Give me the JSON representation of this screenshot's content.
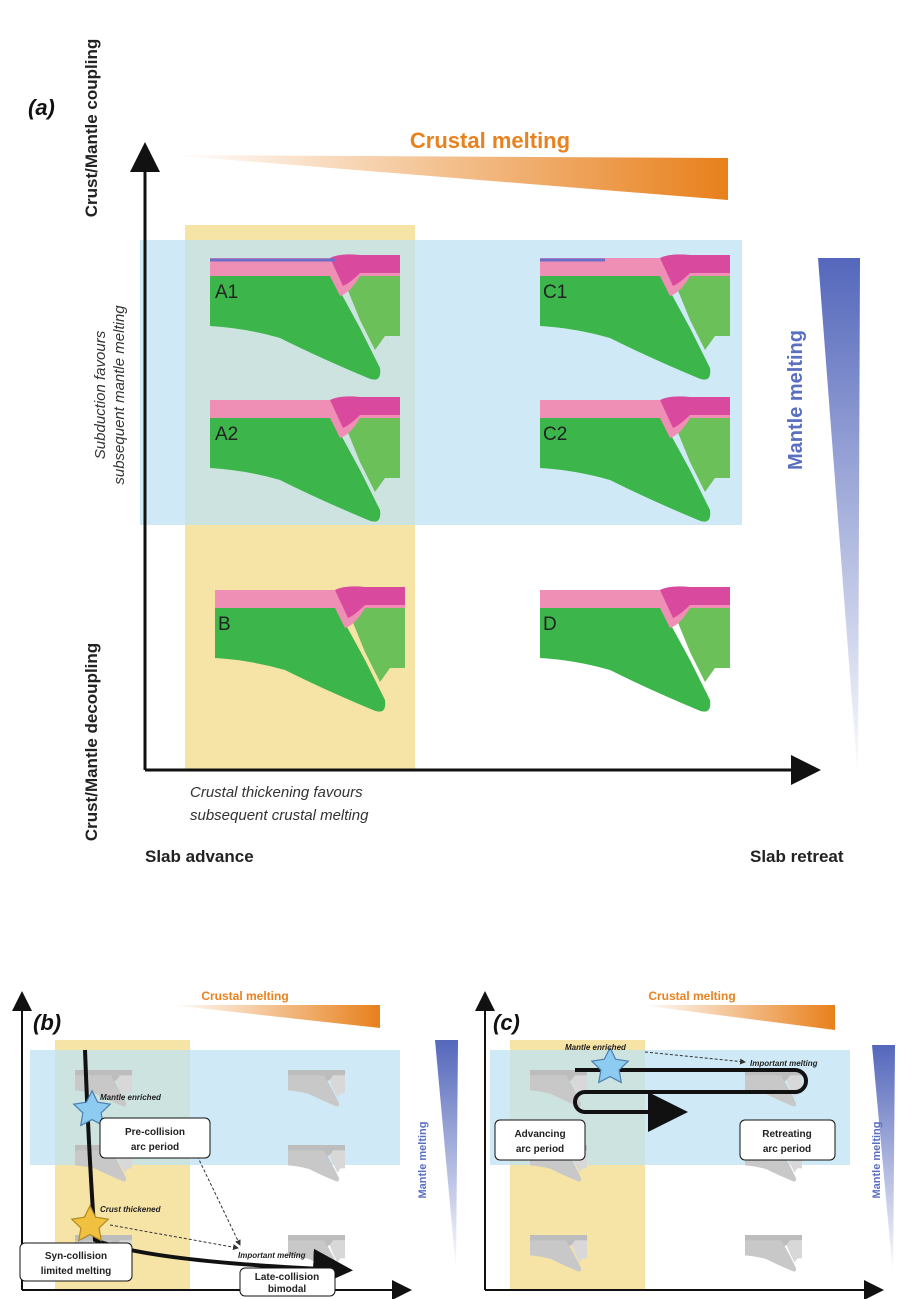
{
  "panel_a": {
    "label": "(a)",
    "y_axis_top": "Crust/Mantle coupling",
    "y_axis_bottom": "Crust/Mantle decoupling",
    "crustal_melting": "Crustal melting",
    "mantle_melting": "Mantle melting",
    "subduction_note": [
      "Subduction favours",
      "subsequent mantle melting"
    ],
    "thickening_note": [
      "Crustal thickening favours",
      "subsequent crustal melting"
    ],
    "x_axis_left": "Slab advance",
    "x_axis_right": "Slab retreat",
    "scenarios": [
      "A1",
      "A2",
      "B",
      "C1",
      "C2",
      "D"
    ]
  },
  "panel_b": {
    "label": "(b)",
    "crustal_melting": "Crustal melting",
    "mantle_melting": "Mantle melting",
    "mantle_enriched": "Mantle enriched",
    "crust_thickened": "Crust thickened",
    "important_melting": "Important melting",
    "boxes": [
      [
        "Pre-collision",
        "arc period"
      ],
      [
        "Syn-collision",
        "limited melting"
      ],
      [
        "Late-collision",
        "bimodal"
      ]
    ]
  },
  "panel_c": {
    "label": "(c)",
    "crustal_melting": "Crustal melting",
    "mantle_melting": "Mantle melting",
    "mantle_enriched": "Mantle enriched",
    "important_melting": "Important melting",
    "boxes": [
      [
        "Advancing",
        "arc period"
      ],
      [
        "Retreating",
        "arc period"
      ]
    ]
  }
}
